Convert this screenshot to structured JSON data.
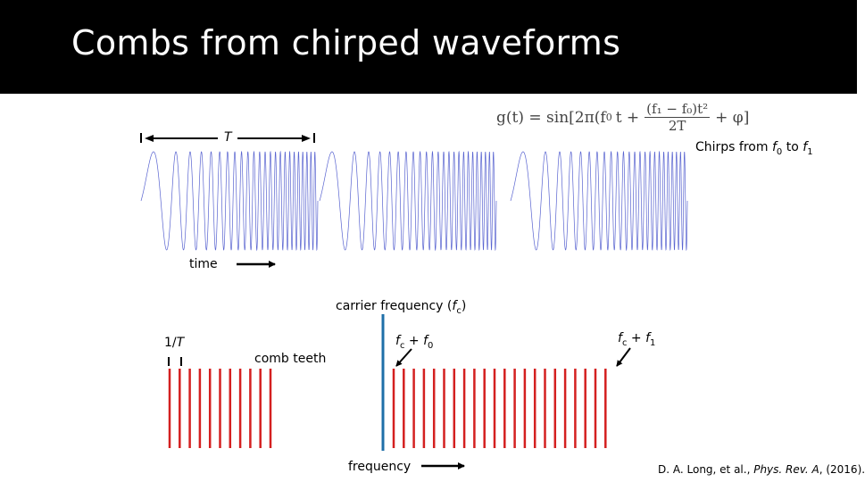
{
  "slide": {
    "title": "Combs from chirped waveforms"
  },
  "equation": {
    "lhs": "g(t) = sin[2π(f",
    "lhs_sub": "0",
    "t_part": "t +",
    "num": "(f₁ − f₀)t²",
    "den": "2T",
    "rhs": "+ φ]"
  },
  "time_domain": {
    "period_label": "T",
    "time_label": "time",
    "chirp_note_prefix": "Chirps from ",
    "chirp_f0": "f",
    "chirp_f0_sub": "0",
    "chirp_to": " to ",
    "chirp_f1": "f",
    "chirp_f1_sub": "1",
    "waveform_color": "#3b48c8",
    "num_periods": 3
  },
  "freq_domain": {
    "carrier_label_prefix": "carrier frequency (",
    "carrier_f": "f",
    "carrier_sub": "c",
    "carrier_label_suffix": ")",
    "spacing_label_prefix": "1/",
    "spacing_label_T": "T",
    "comb_teeth_label": "comb teeth",
    "fc_plus_f0": {
      "f": "f",
      "sub1": "c",
      "plus": " + ",
      "f2": "f",
      "sub2": "0"
    },
    "fc_plus_f1": {
      "f": "f",
      "sub1": "c",
      "plus": " + ",
      "f2": "f",
      "sub2": "1"
    },
    "frequency_label": "frequency",
    "tooth_color": "#d42020",
    "carrier_color": "#1f6fa8",
    "left_teeth": 11,
    "right_teeth": 22
  },
  "citation": {
    "authors": "D. A. Long, et al., ",
    "journal": "Phys. Rev. A",
    "year": ", (2016)."
  }
}
